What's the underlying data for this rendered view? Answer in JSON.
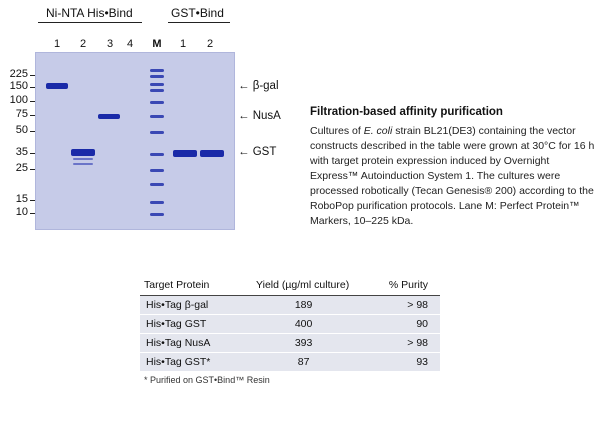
{
  "figure": {
    "group1_title": "Ni-NTA His•Bind",
    "group2_title": "GST•Bind",
    "lanes_group1": [
      "1",
      "2",
      "3",
      "4"
    ],
    "lane_marker": "M",
    "lanes_group2": [
      "1",
      "2"
    ],
    "mw_labels": [
      "225",
      "150",
      "100",
      "75",
      "50",
      "35",
      "25",
      "15",
      "10"
    ],
    "annotations": {
      "bgal": "β-gal",
      "nusa": "NusA",
      "gst": "GST"
    }
  },
  "caption": {
    "title": "Filtration-based affinity purification",
    "text_pre": "Cultures of ",
    "text_italic": "E. coli",
    "text_post": " strain BL21(DE3) containing the vector constructs described in the table were grown at 30°C for 16 h with target protein expression induced by Overnight Express™ Autoinduction System 1. The cultures were processed robotically (Tecan Genesis® 200) according to the RoboPop purification protocols. Lane M: Perfect Protein™ Markers, 10–225 kDa."
  },
  "table": {
    "headers": [
      "Target Protein",
      "Yield (µg/ml culture)",
      "% Purity"
    ],
    "rows": [
      [
        "His•Tag β-gal",
        "189",
        "> 98"
      ],
      [
        "His•Tag GST",
        "400",
        "90"
      ],
      [
        "His•Tag NusA",
        "393",
        "> 98"
      ],
      [
        "His•Tag GST*",
        "87",
        "93"
      ]
    ],
    "footnote": "* Purified on GST•Bind™ Resin"
  }
}
